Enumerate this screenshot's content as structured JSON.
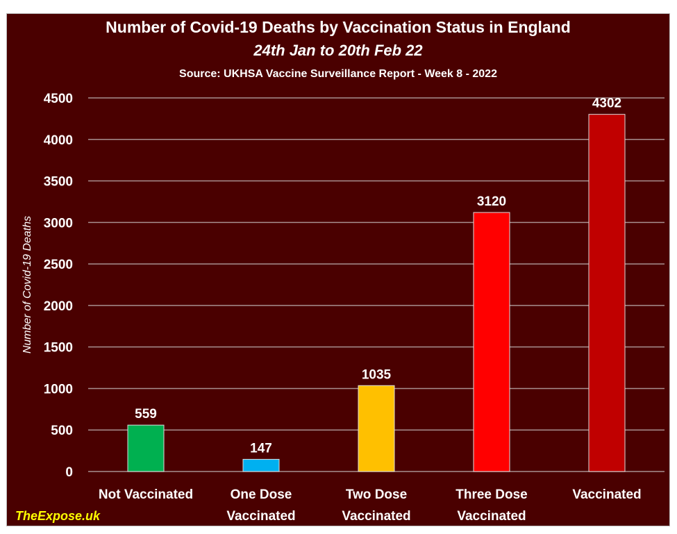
{
  "chart_data": {
    "type": "bar",
    "title": "Number of Covid-19 Deaths by Vaccination Status in England",
    "subtitle": "24th Jan to 20th Feb 22",
    "source": "Source: UKHSA Vaccine Surveillance Report - Week 8 - 2022",
    "ylabel": "Number of Covid-19 Deaths",
    "xlabel": "",
    "ylim": [
      0,
      4500
    ],
    "yticks": [
      0,
      500,
      1000,
      1500,
      2000,
      2500,
      3000,
      3500,
      4000,
      4500
    ],
    "grid": true,
    "categories": [
      [
        "Not Vaccinated"
      ],
      [
        "One Dose",
        "Vaccinated"
      ],
      [
        "Two Dose",
        "Vaccinated"
      ],
      [
        "Three Dose",
        "Vaccinated"
      ],
      [
        "Vaccinated"
      ]
    ],
    "values": [
      559,
      147,
      1035,
      3120,
      4302
    ],
    "colors": [
      "#00b050",
      "#00b0f0",
      "#ffc000",
      "#ff0000",
      "#c00000"
    ]
  },
  "watermark": "TheExpose.uk",
  "colors": {
    "background": "#4a0000",
    "watermark": "#ffff00",
    "grid": "#a89090"
  }
}
